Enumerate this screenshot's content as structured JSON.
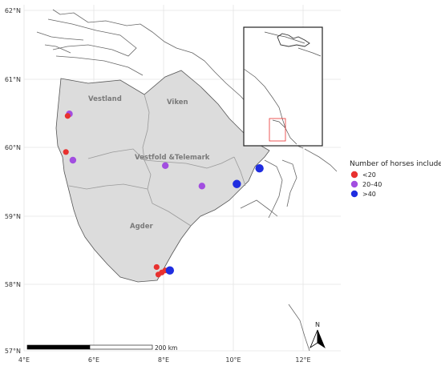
{
  "axes": {
    "y_ticks": [
      "62°N",
      "61°N",
      "60°N",
      "59°N",
      "58°N",
      "57°N"
    ],
    "x_ticks": [
      "4°E",
      "6°E",
      "8°E",
      "10°E",
      "12°E"
    ]
  },
  "regions": [
    {
      "name": "Vestland"
    },
    {
      "name": "Viken"
    },
    {
      "name": "Vestfold &Telemark"
    },
    {
      "name": "Agder"
    }
  ],
  "legend": {
    "title": "Number of horses included",
    "items": [
      {
        "label": "<20",
        "color": "#e8312f"
      },
      {
        "label": "20–40",
        "color": "#a24ee0"
      },
      {
        "label": ">40",
        "color": "#1f2de0"
      }
    ]
  },
  "scale_bar": {
    "label": "200 km"
  },
  "north_arrow": {
    "label": "N"
  },
  "points": [
    {
      "lon": 5.3,
      "lat": 60.48,
      "category": "20–40"
    },
    {
      "lon": 5.25,
      "lat": 60.45,
      "category": "<20"
    },
    {
      "lon": 5.2,
      "lat": 59.92,
      "category": "<20"
    },
    {
      "lon": 5.4,
      "lat": 59.8,
      "category": "20–40"
    },
    {
      "lon": 8.05,
      "lat": 59.72,
      "category": "20–40"
    },
    {
      "lon": 9.1,
      "lat": 59.42,
      "category": "20–40"
    },
    {
      "lon": 10.1,
      "lat": 59.45,
      "category": ">40"
    },
    {
      "lon": 10.75,
      "lat": 59.68,
      "category": ">40"
    },
    {
      "lon": 7.8,
      "lat": 58.23,
      "category": "<20"
    },
    {
      "lon": 7.85,
      "lat": 58.12,
      "category": "<20"
    },
    {
      "lon": 7.95,
      "lat": 58.15,
      "category": "<20"
    },
    {
      "lon": 8.05,
      "lat": 58.18,
      "category": "<20"
    },
    {
      "lon": 8.18,
      "lat": 58.18,
      "category": ">40"
    }
  ]
}
